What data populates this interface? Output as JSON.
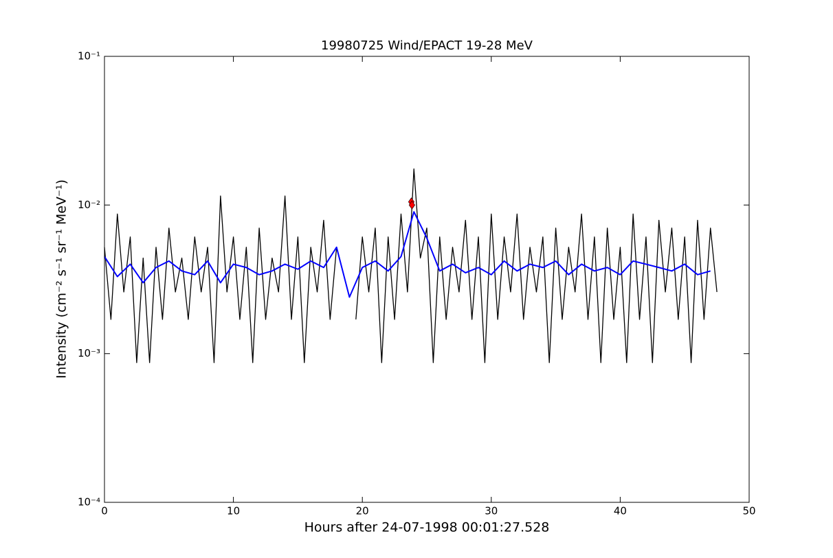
{
  "chart_data": {
    "type": "line",
    "title": "19980725 Wind/EPACT 19-28 MeV",
    "xlabel": "Hours after 24-07-1998 00:01:27.528",
    "ylabel": "Intensity (cm⁻² s⁻¹ sr⁻¹ MeV⁻¹)",
    "xlim": [
      0,
      50
    ],
    "xticks": [
      0,
      10,
      20,
      30,
      40,
      50
    ],
    "ylim": [
      0.0001,
      0.1
    ],
    "yscale": "log",
    "yticks": [
      {
        "value": 0.0001,
        "label": "10⁻⁴"
      },
      {
        "value": 0.001,
        "label": "10⁻³"
      },
      {
        "value": 0.01,
        "label": "10⁻²"
      },
      {
        "value": 0.1,
        "label": "10⁻¹"
      }
    ],
    "series": [
      {
        "color": "#000000",
        "style": "line",
        "width": 1.3,
        "x": [
          0,
          0.5,
          1,
          1.5,
          2,
          2.5,
          3,
          3.5,
          4,
          4.5,
          5,
          5.5,
          6,
          6.5,
          7,
          7.5,
          8,
          8.5,
          9,
          9.5,
          10,
          10.5,
          11,
          11.5,
          12,
          12.5,
          13,
          13.5,
          14,
          14.5,
          15,
          15.5,
          16,
          16.5,
          17,
          17.5,
          18,
          18.5,
          19,
          19.5,
          20,
          20.5,
          21,
          21.5,
          22,
          22.5,
          23,
          23.5,
          24,
          24.5,
          25,
          25.5,
          26,
          26.5,
          27,
          27.5,
          28,
          28.5,
          29,
          29.5,
          30,
          30.5,
          31,
          31.5,
          32,
          32.5,
          33,
          33.5,
          34,
          34.5,
          35,
          35.5,
          36,
          36.5,
          37,
          37.5,
          38,
          38.5,
          39,
          39.5,
          40,
          40.5,
          41,
          41.5,
          42,
          42.5,
          43,
          43.5,
          44,
          44.5,
          45,
          45.5,
          46,
          46.5,
          47,
          47.5
        ],
        "values": [
          0.0052,
          0.0017,
          0.0087,
          0.0026,
          0.0061,
          0.00087,
          0.0044,
          0.00087,
          0.0052,
          0.0017,
          0.007,
          0.0026,
          0.0044,
          0.0017,
          0.0061,
          0.0026,
          0.0052,
          0.00087,
          0.0115,
          0.0026,
          0.0061,
          0.0017,
          0.0052,
          0.00087,
          0.007,
          0.0017,
          0.0044,
          0.0026,
          0.0115,
          0.0017,
          0.0061,
          0.00087,
          0.0052,
          0.0026,
          0.0079,
          0.0017,
          0.0052,
          null,
          null,
          0.0017,
          0.0061,
          0.0026,
          0.007,
          0.00087,
          0.0061,
          0.0017,
          0.0087,
          0.0026,
          0.0175,
          0.0044,
          0.007,
          0.00087,
          0.0061,
          0.0017,
          0.0052,
          0.0026,
          0.0079,
          0.0017,
          0.0061,
          0.00087,
          0.0087,
          0.0017,
          0.0061,
          0.0026,
          0.0087,
          0.0017,
          0.0052,
          0.0026,
          0.0061,
          0.00087,
          0.007,
          0.0017,
          0.0052,
          0.0026,
          0.0087,
          0.0017,
          0.0061,
          0.00087,
          0.007,
          0.0017,
          0.0052,
          0.00087,
          0.0087,
          0.0017,
          0.0061,
          0.00087,
          0.0079,
          0.0026,
          0.007,
          0.0017,
          0.0061,
          0.00087,
          0.0079,
          0.0017,
          0.007,
          0.0026
        ]
      },
      {
        "color": "#0000ff",
        "style": "line",
        "width": 2,
        "x": [
          0,
          1,
          2,
          3,
          4,
          5,
          6,
          7,
          8,
          9,
          10,
          11,
          12,
          13,
          14,
          15,
          16,
          17,
          18,
          19,
          20,
          21,
          22,
          23,
          24,
          25,
          26,
          27,
          28,
          29,
          30,
          31,
          32,
          33,
          34,
          35,
          36,
          37,
          38,
          39,
          40,
          41,
          42,
          43,
          44,
          45,
          46,
          47
        ],
        "values": [
          0.0045,
          0.0033,
          0.004,
          0.003,
          0.0038,
          0.0042,
          0.0036,
          0.0034,
          0.0042,
          0.003,
          0.004,
          0.0038,
          0.0034,
          0.0036,
          0.004,
          0.0037,
          0.0042,
          0.0038,
          0.0052,
          0.0024,
          0.0038,
          0.0042,
          0.0036,
          0.0045,
          0.009,
          0.006,
          0.0036,
          0.004,
          0.0035,
          0.0038,
          0.0034,
          0.0042,
          0.0036,
          0.004,
          0.0038,
          0.0042,
          0.0034,
          0.004,
          0.0036,
          0.0038,
          0.0034,
          0.0042,
          0.004,
          0.0038,
          0.0036,
          0.004,
          0.0034,
          0.0036
        ]
      },
      {
        "color": "#ff0000",
        "style": "diamond",
        "x": [
          23.8,
          23.85
        ],
        "values": [
          0.0105,
          0.01
        ]
      }
    ]
  }
}
